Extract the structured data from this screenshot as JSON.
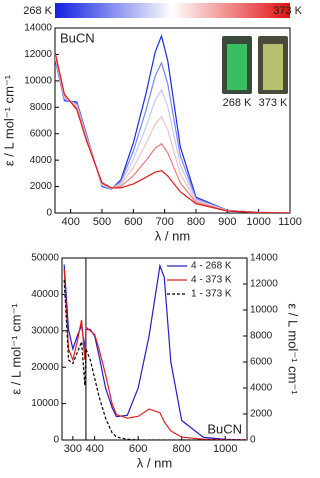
{
  "chart_data": [
    {
      "type": "line",
      "colorbar": {
        "low": "268 K",
        "high": "373 K",
        "colors": [
          "#1020e0",
          "#ffffff",
          "#e01010"
        ]
      },
      "annotation": "BuCN",
      "photo_labels": [
        "268 K",
        "373 K"
      ],
      "xlabel": "λ / nm",
      "ylabel": "ε / L mol⁻¹ cm⁻¹",
      "xlim": [
        350,
        1100
      ],
      "xticks": [
        400,
        500,
        600,
        700,
        800,
        900,
        1000,
        1100
      ],
      "ylim": [
        0,
        14000
      ],
      "yticks": [
        0,
        2000,
        4000,
        6000,
        8000,
        10000,
        12000,
        14000
      ],
      "x": [
        350,
        380,
        420,
        450,
        500,
        530,
        560,
        600,
        640,
        670,
        690,
        710,
        750,
        800,
        900,
        1000,
        1100
      ],
      "series": [
        {
          "color": "#1a2ae0",
          "values": [
            11700,
            8500,
            8400,
            6000,
            2000,
            1800,
            2500,
            5300,
            9000,
            12200,
            13400,
            11500,
            5000,
            1200,
            200,
            50,
            0
          ]
        },
        {
          "color": "#7a86ee",
          "values": [
            11800,
            8600,
            8280,
            5900,
            2060,
            1820,
            2380,
            4680,
            7740,
            10380,
            11360,
            9760,
            4320,
            1100,
            190,
            46,
            0
          ]
        },
        {
          "color": "#c4c9f5",
          "values": [
            11900,
            8700,
            8160,
            5800,
            2120,
            1840,
            2260,
            4060,
            6480,
            8560,
            9320,
            8020,
            3640,
            1000,
            180,
            42,
            0
          ]
        },
        {
          "color": "#f3c0c0",
          "values": [
            12000,
            8800,
            8040,
            5700,
            2180,
            1860,
            2140,
            3440,
            5220,
            6740,
            7280,
            6280,
            2960,
            900,
            170,
            38,
            0
          ]
        },
        {
          "color": "#ee7a7a",
          "values": [
            12100,
            8900,
            7920,
            5600,
            2240,
            1880,
            2020,
            2820,
            3960,
            4920,
            5240,
            4540,
            2280,
            800,
            160,
            34,
            0
          ]
        },
        {
          "color": "#e01a1a",
          "values": [
            12200,
            9000,
            7800,
            5500,
            2300,
            1900,
            1900,
            2200,
            2700,
            3100,
            3200,
            2800,
            1600,
            700,
            150,
            30,
            0
          ]
        }
      ]
    },
    {
      "type": "line",
      "annotation": "BuCN",
      "xlabel": "λ / nm",
      "ylabel": "ε / L mol⁻¹ cm⁻¹",
      "y2label": "ε / L mol⁻¹ cm⁻¹",
      "legend": "upper right",
      "break_x": 360,
      "xlim": [
        250,
        1100
      ],
      "xticks": [
        300,
        400,
        600,
        800,
        1000
      ],
      "ylim": [
        0,
        50000
      ],
      "yticks": [
        0,
        10000,
        20000,
        30000,
        40000,
        50000
      ],
      "y2lim": [
        0,
        14000
      ],
      "y2ticks": [
        0,
        2000,
        4000,
        6000,
        8000,
        10000,
        12000,
        14000
      ],
      "x": [
        260,
        280,
        300,
        320,
        340,
        355,
        360,
        380,
        400,
        420,
        450,
        480,
        500,
        550,
        600,
        650,
        700,
        720,
        750,
        800,
        900,
        1000,
        1100
      ],
      "series": [
        {
          "name": "4 - 268 K",
          "color": "#2020c8",
          "axis": "y2",
          "linestyle": "solid",
          "values": [
            13500,
            8500,
            7000,
            8000,
            8800,
            7000,
            8500,
            8500,
            8000,
            6500,
            4000,
            2500,
            1800,
            1900,
            4000,
            8000,
            13400,
            12500,
            6000,
            1500,
            200,
            50,
            0
          ]
        },
        {
          "name": "4 - 373 K",
          "color": "#e02020",
          "linestyle": "solid",
          "values": [
            47000,
            25000,
            22000,
            27000,
            33000,
            22000,
            31000,
            30000,
            29000,
            25000,
            18000,
            10000,
            7000,
            6000,
            6500,
            8500,
            7500,
            5000,
            2500,
            800,
            200,
            50,
            0
          ]
        },
        {
          "name": "1 - 373 K",
          "color": "#000000",
          "linestyle": "dashed",
          "values": [
            44000,
            22000,
            21000,
            24000,
            27000,
            15000,
            25000,
            22000,
            17000,
            12000,
            6000,
            2000,
            800,
            200,
            0,
            0,
            0,
            0,
            0,
            0,
            0,
            0,
            0
          ]
        }
      ]
    }
  ]
}
